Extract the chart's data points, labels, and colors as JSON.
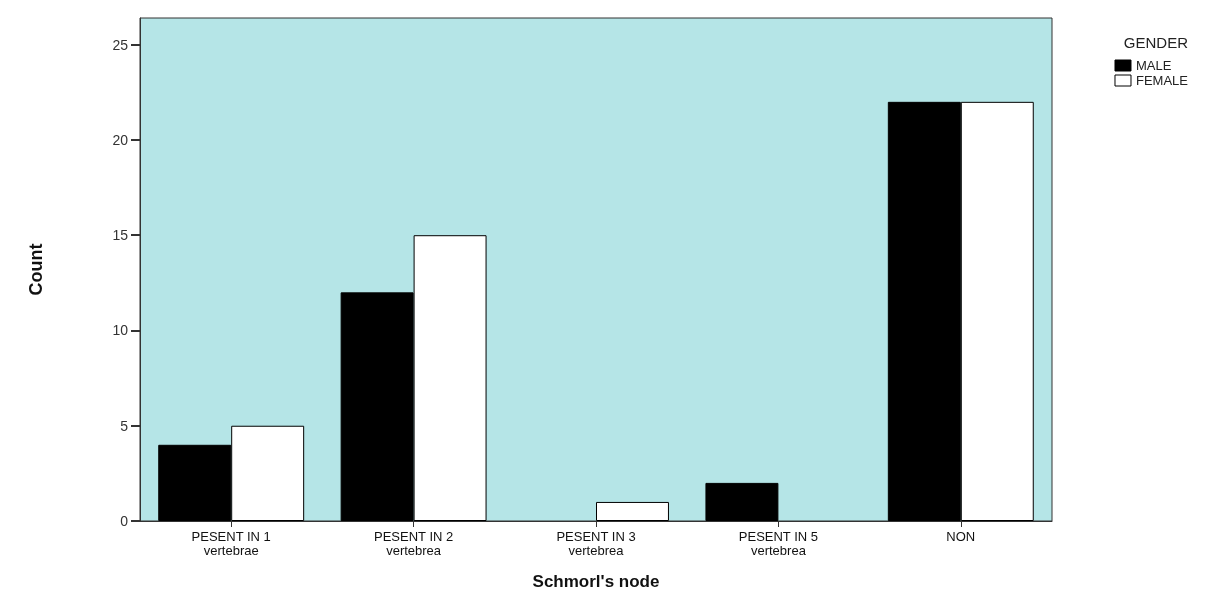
{
  "chart_data": {
    "type": "bar",
    "xlabel": "Schmorl's node",
    "ylabel": "Count",
    "legend_title": "GENDER",
    "categories": [
      "PESENT IN 1\nvertebrae",
      "PESENT IN 2\nvertebrea",
      "PESENT IN 3\nvertebrea",
      "PESENT IN 5\nvertebrea",
      "NON"
    ],
    "series": [
      {
        "name": "MALE",
        "color": "#000000",
        "values": [
          4,
          12,
          0,
          2,
          22
        ]
      },
      {
        "name": "FEMALE",
        "color": "#ffffff",
        "values": [
          5,
          15,
          1,
          0,
          22
        ]
      }
    ],
    "ylim": [
      0,
      26.4
    ],
    "yticks": [
      0,
      5,
      10,
      15,
      20,
      25
    ],
    "grid": false,
    "legend": "top right"
  }
}
